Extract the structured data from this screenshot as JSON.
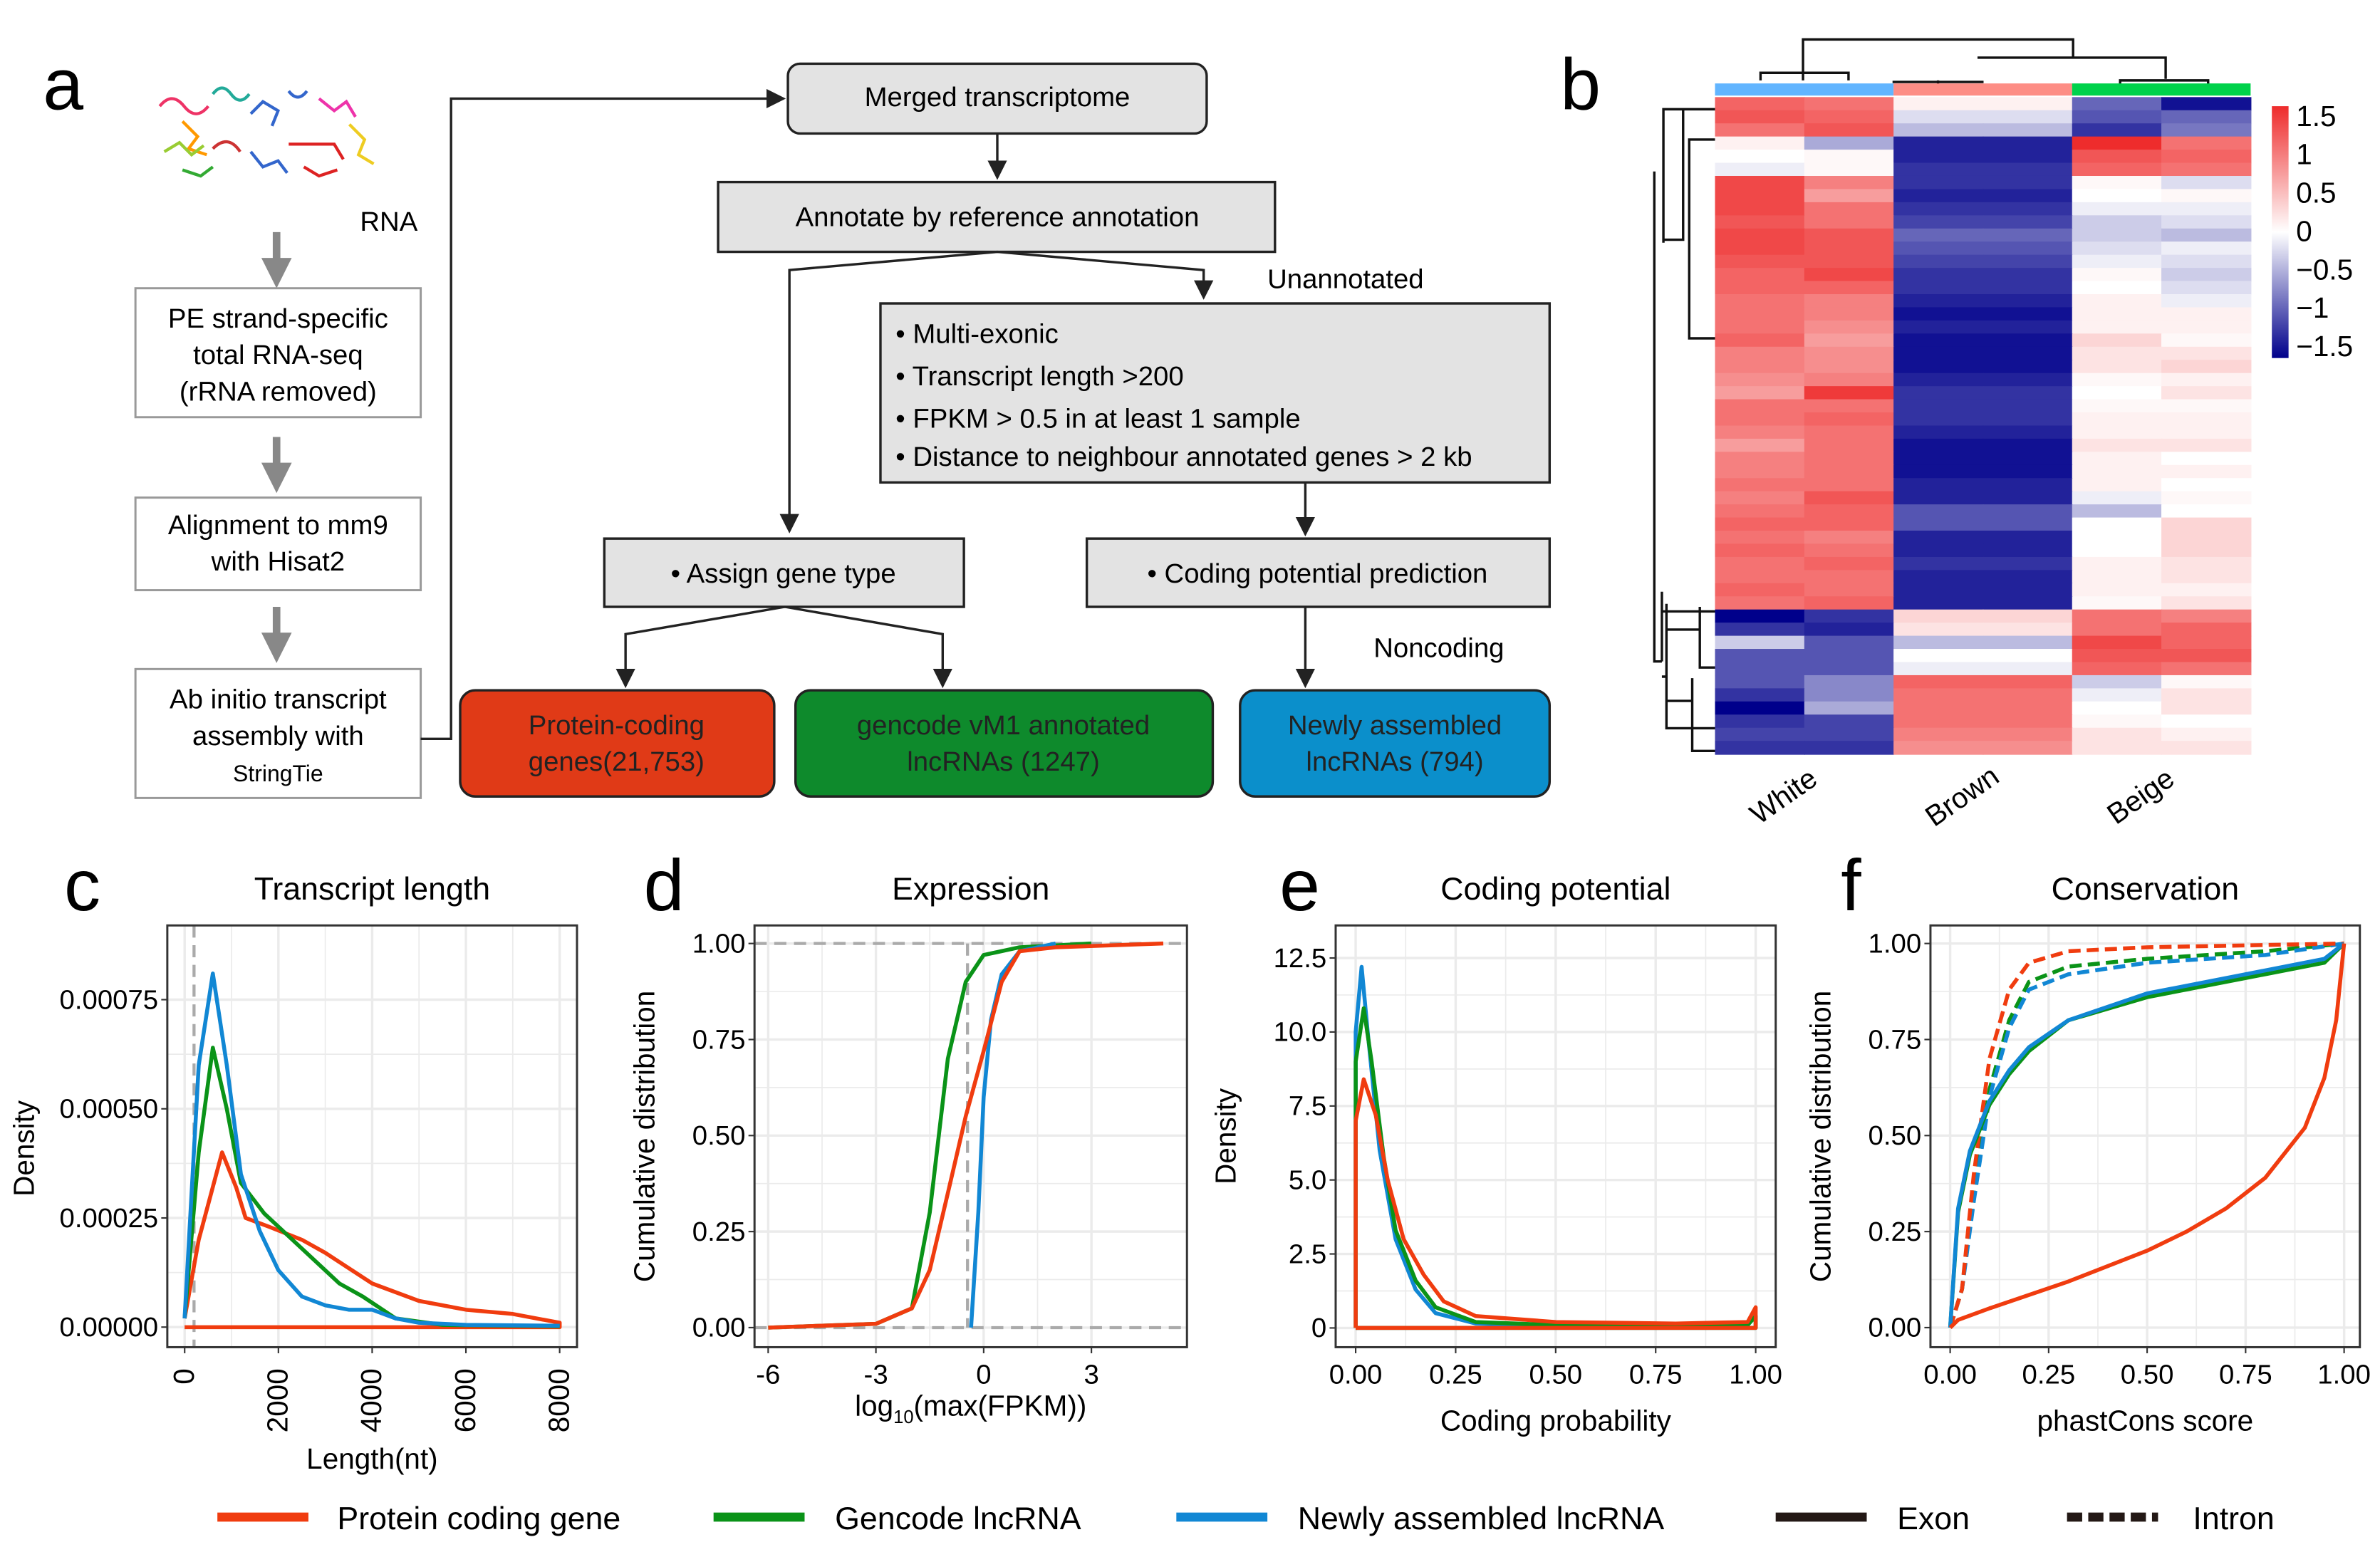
{
  "panel_labels": {
    "a": "a",
    "b": "b",
    "c": "c",
    "d": "d",
    "e": "e",
    "f": "f"
  },
  "flowchart": {
    "rna_label": "RNA",
    "step1": [
      "PE strand-specific",
      "total RNA-seq",
      "(rRNA removed)"
    ],
    "step2": [
      "Alignment to mm9",
      "with   Hisat2"
    ],
    "step3": [
      "Ab initio transcript",
      "assembly with",
      "StringTie"
    ],
    "merged": "Merged transcriptome",
    "annotate": "Annotate by reference annotation",
    "unannotated": "Unannotated",
    "criteria": [
      "• Multi-exonic",
      "• Transcript length >200",
      "• FPKM > 0.5 in at least 1 sample",
      "• Distance to neighbour annotated genes > 2 kb"
    ],
    "assign": "• Assign gene type",
    "coding_pred": "• Coding potential prediction",
    "noncoding": "Noncoding",
    "protein_box": [
      "Protein-coding",
      "genes(21,753)"
    ],
    "gencode_box": [
      "gencode vM1 annotated",
      "lncRNAs (1247)"
    ],
    "newly_box": [
      "Newly assembled",
      "lncRNAs (794)"
    ],
    "colors": {
      "protein": "#e03a17",
      "gencode": "#0e8a2c",
      "newly": "#0b8fcb"
    }
  },
  "legend": [
    {
      "label": "Protein coding gene",
      "color": "#f03c0f",
      "style": "solid"
    },
    {
      "label": "Gencode lncRNA",
      "color": "#0a9318",
      "style": "solid"
    },
    {
      "label": "Newly assembled lncRNA",
      "color": "#1187d4",
      "style": "solid"
    },
    {
      "label": "Exon",
      "color": "#231815",
      "style": "solid"
    },
    {
      "label": "Intron",
      "color": "#231815",
      "style": "dashed"
    }
  ],
  "chart_data": [
    {
      "id": "b",
      "type": "heatmap",
      "columns": [
        "White",
        "White",
        "Brown",
        "Brown",
        "Beige",
        "Beige"
      ],
      "groups": [
        {
          "name": "White",
          "color": "#62b5ff"
        },
        {
          "name": "Brown",
          "color": "#fd8d85"
        },
        {
          "name": "Beige",
          "color": "#00d24b"
        }
      ],
      "colorbar": {
        "ticks": [
          "1.5",
          "1",
          "0.5",
          "0",
          "−0.5",
          "−1",
          "−1.5"
        ],
        "range": [
          -1.5,
          1.5
        ],
        "low": "#00008b",
        "mid": "#ffffff",
        "high": "#ee2c2c"
      },
      "rows": [
        [
          1.1,
          1.0,
          0.1,
          0.1,
          -0.9,
          -1.4
        ],
        [
          1.2,
          1.1,
          -0.2,
          -0.2,
          -1.0,
          -0.9
        ],
        [
          1.0,
          1.2,
          -0.4,
          -0.4,
          -1.2,
          -0.8
        ],
        [
          0.1,
          -0.5,
          -1.3,
          -1.3,
          1.5,
          1.0
        ],
        [
          0.0,
          0.05,
          -1.3,
          -1.3,
          1.2,
          1.1
        ],
        [
          -0.1,
          0.05,
          -1.2,
          -1.2,
          1.1,
          1.0
        ],
        [
          1.3,
          0.9,
          -1.2,
          -1.2,
          0.05,
          -0.2
        ],
        [
          1.3,
          0.7,
          -1.3,
          -1.3,
          0.0,
          0.05
        ],
        [
          1.3,
          1.0,
          -1.2,
          -1.2,
          -0.1,
          -0.1
        ],
        [
          1.2,
          1.0,
          -1.1,
          -1.1,
          -0.3,
          -0.2
        ],
        [
          1.3,
          1.2,
          -0.9,
          -0.9,
          -0.3,
          -0.4
        ],
        [
          1.3,
          1.2,
          -1.0,
          -1.0,
          -0.2,
          -0.1
        ],
        [
          1.2,
          1.2,
          -1.1,
          -1.1,
          -0.1,
          -0.2
        ],
        [
          1.1,
          1.3,
          -1.2,
          -1.2,
          0.05,
          -0.3
        ],
        [
          1.1,
          1.1,
          -1.2,
          -1.2,
          0.0,
          -0.2
        ],
        [
          1.0,
          0.9,
          -1.3,
          -1.3,
          0.1,
          -0.1
        ],
        [
          1.0,
          0.9,
          -1.4,
          -1.4,
          0.1,
          0.1
        ],
        [
          1.0,
          0.8,
          -1.3,
          -1.3,
          0.1,
          0.1
        ],
        [
          1.1,
          0.7,
          -1.4,
          -1.4,
          0.3,
          0.05
        ],
        [
          0.9,
          0.8,
          -1.4,
          -1.4,
          0.2,
          0.2
        ],
        [
          0.9,
          0.8,
          -1.4,
          -1.4,
          0.2,
          0.3
        ],
        [
          0.8,
          0.9,
          -1.3,
          -1.3,
          0.05,
          0.1
        ],
        [
          0.7,
          1.4,
          -1.2,
          -1.2,
          0.0,
          0.2
        ],
        [
          1.0,
          1.0,
          -1.2,
          -1.2,
          0.05,
          0.05
        ],
        [
          1.0,
          1.1,
          -1.2,
          -1.2,
          0.1,
          0.1
        ],
        [
          0.9,
          1.0,
          -1.3,
          -1.3,
          0.1,
          0.1
        ],
        [
          0.7,
          1.0,
          -1.4,
          -1.4,
          0.2,
          0.2
        ],
        [
          0.9,
          1.0,
          -1.4,
          -1.4,
          0.1,
          0.0
        ],
        [
          0.9,
          1.0,
          -1.4,
          -1.4,
          0.1,
          0.1
        ],
        [
          1.0,
          1.0,
          -1.3,
          -1.3,
          0.1,
          0.0
        ],
        [
          0.9,
          1.2,
          -1.3,
          -1.3,
          -0.1,
          0.05
        ],
        [
          1.0,
          1.1,
          -1.0,
          -1.0,
          -0.4,
          0.0
        ],
        [
          1.1,
          1.1,
          -1.0,
          -1.0,
          0.0,
          0.3
        ],
        [
          1.0,
          0.9,
          -1.3,
          -1.3,
          0.0,
          0.3
        ],
        [
          1.1,
          1.0,
          -1.3,
          -1.3,
          0.0,
          0.3
        ],
        [
          1.0,
          1.1,
          -1.2,
          -1.2,
          0.1,
          0.2
        ],
        [
          1.0,
          1.0,
          -1.3,
          -1.3,
          0.1,
          0.2
        ],
        [
          1.1,
          1.0,
          -1.3,
          -1.3,
          0.1,
          0.1
        ],
        [
          1.0,
          1.1,
          -1.3,
          -1.3,
          0.05,
          0.2
        ],
        [
          -1.5,
          -1.2,
          0.3,
          0.3,
          1.0,
          0.9
        ],
        [
          -1.2,
          -1.3,
          0.2,
          0.2,
          1.0,
          1.1
        ],
        [
          -0.3,
          -1.0,
          -0.4,
          -0.4,
          1.3,
          1.1
        ],
        [
          -1.0,
          -1.0,
          0.0,
          0.0,
          1.2,
          1.2
        ],
        [
          -1.0,
          -1.0,
          -0.1,
          -0.1,
          1.1,
          1.0
        ],
        [
          -1.0,
          -0.7,
          1.1,
          1.1,
          -0.3,
          0.05
        ],
        [
          -1.2,
          -0.7,
          1.0,
          1.0,
          -0.1,
          0.2
        ],
        [
          -1.5,
          -0.5,
          1.0,
          1.0,
          0.0,
          0.2
        ],
        [
          -1.2,
          -1.1,
          1.0,
          1.0,
          0.05,
          0.0
        ],
        [
          -1.1,
          -1.1,
          0.9,
          0.9,
          0.2,
          0.1
        ],
        [
          -1.2,
          -1.2,
          0.8,
          0.8,
          0.2,
          0.2
        ]
      ]
    },
    {
      "id": "c",
      "type": "line",
      "title": "Transcript length",
      "xlabel": "Length(nt)",
      "ylabel": "Density",
      "xlim": [
        -370,
        8370
      ],
      "ylim": [
        -4.6e-05,
        0.00092
      ],
      "xticks": [
        0,
        2000,
        4000,
        6000,
        8000
      ],
      "xtick_labels": [
        "0",
        "2000",
        "4000",
        "6000",
        "8000"
      ],
      "yticks": [
        0,
        0.00025,
        0.0005,
        0.00075
      ],
      "ytick_labels": [
        "0.00000",
        "0.00025",
        "0.00050",
        "0.00075"
      ],
      "vline": 200,
      "series": [
        {
          "name": "Protein coding gene",
          "x": [
            0,
            300,
            800,
            1100,
            1300,
            1800,
            2500,
            3000,
            4000,
            5000,
            6000,
            7000,
            8000,
            8000,
            0
          ],
          "y": [
            2e-05,
            0.0002,
            0.0004,
            0.00032,
            0.00025,
            0.00023,
            0.0002,
            0.00017,
            0.0001,
            6e-05,
            4e-05,
            3e-05,
            1e-05,
            0,
            0
          ]
        },
        {
          "name": "Gencode lncRNA",
          "x": [
            0,
            300,
            600,
            900,
            1200,
            1700,
            2500,
            3300,
            3800,
            4500,
            5500,
            8000
          ],
          "y": [
            2e-05,
            0.0004,
            0.00064,
            0.0005,
            0.00033,
            0.00026,
            0.00018,
            0.0001,
            7e-05,
            2e-05,
            5e-06,
            2e-06
          ]
        },
        {
          "name": "Newly assembled lncRNA",
          "x": [
            0,
            300,
            600,
            900,
            1200,
            1600,
            2000,
            2500,
            3000,
            3500,
            4000,
            4500,
            5000,
            6000,
            8000
          ],
          "y": [
            2e-05,
            0.0006,
            0.00081,
            0.0006,
            0.00035,
            0.00022,
            0.00013,
            7e-05,
            5e-05,
            4e-05,
            4e-05,
            2e-05,
            1e-05,
            5e-06,
            3e-06
          ]
        }
      ]
    },
    {
      "id": "d",
      "type": "line",
      "title": "Expression",
      "xlabel": "log10(max(FPKM))",
      "ylabel": "Cumulative distribution",
      "xlim": [
        -6.38,
        5.66
      ],
      "ylim": [
        -0.051,
        1.047
      ],
      "xticks": [
        -6,
        -3,
        0,
        3
      ],
      "xtick_labels": [
        "-6",
        "-3",
        "0",
        "3"
      ],
      "yticks": [
        0,
        0.25,
        0.5,
        0.75,
        1
      ],
      "ytick_labels": [
        "0.00",
        "0.25",
        "0.50",
        "0.75",
        "1.00"
      ],
      "vline": -0.45,
      "hlines": [
        0,
        1
      ],
      "series": [
        {
          "name": "Gencode lncRNA",
          "x": [
            -6,
            -3,
            -2,
            -1.5,
            -1,
            -0.5,
            0,
            1,
            3
          ],
          "y": [
            0,
            0.01,
            0.05,
            0.3,
            0.7,
            0.9,
            0.97,
            0.99,
            1
          ]
        },
        {
          "name": "Newly assembled lncRNA",
          "x": [
            -0.35,
            -0.15,
            0,
            0.2,
            0.5,
            1,
            2
          ],
          "y": [
            0,
            0.3,
            0.6,
            0.8,
            0.92,
            0.98,
            1
          ]
        },
        {
          "name": "Protein coding gene",
          "x": [
            -6,
            -3,
            -2,
            -1.5,
            -1,
            -0.5,
            0,
            0.5,
            1,
            2,
            5
          ],
          "y": [
            0,
            0.01,
            0.05,
            0.15,
            0.35,
            0.55,
            0.72,
            0.9,
            0.98,
            0.99,
            1
          ]
        }
      ]
    },
    {
      "id": "e",
      "type": "line",
      "title": "Coding potential",
      "xlabel": "Coding probability",
      "ylabel": "Density",
      "xlim": [
        -0.05,
        1.05
      ],
      "ylim": [
        -0.65,
        13.6
      ],
      "xticks": [
        0,
        0.25,
        0.5,
        0.75,
        1
      ],
      "xtick_labels": [
        "0.00",
        "0.25",
        "0.50",
        "0.75",
        "1.00"
      ],
      "yticks": [
        0,
        2.5,
        5,
        7.5,
        10,
        12.5
      ],
      "ytick_labels": [
        "0",
        "2.5",
        "5.0",
        "7.5",
        "10.0",
        "12.5"
      ],
      "series": [
        {
          "name": "Newly assembled lncRNA",
          "x": [
            0,
            0,
            0.015,
            0.03,
            0.06,
            0.1,
            0.15,
            0.2,
            0.3,
            0.5,
            0.98,
            1,
            1,
            0
          ],
          "y": [
            0,
            10,
            12.2,
            10,
            6,
            3,
            1.3,
            0.5,
            0.15,
            0.08,
            0.1,
            0.4,
            0,
            0
          ]
        },
        {
          "name": "Gencode lncRNA",
          "x": [
            0,
            0,
            0.02,
            0.04,
            0.07,
            0.1,
            0.15,
            0.2,
            0.3,
            0.5,
            0.98,
            1,
            1,
            0
          ],
          "y": [
            0,
            9,
            10.8,
            9,
            5.8,
            3.3,
            1.6,
            0.7,
            0.2,
            0.1,
            0.1,
            0.4,
            0,
            0
          ]
        },
        {
          "name": "Protein coding gene",
          "x": [
            0,
            0,
            0.02,
            0.05,
            0.08,
            0.12,
            0.17,
            0.22,
            0.3,
            0.5,
            0.8,
            0.98,
            1,
            1,
            0
          ],
          "y": [
            0,
            7,
            8.4,
            7.2,
            5,
            3,
            1.8,
            0.9,
            0.4,
            0.2,
            0.15,
            0.2,
            0.7,
            0,
            0
          ]
        }
      ]
    },
    {
      "id": "f",
      "type": "line",
      "title": "Conservation",
      "xlabel": "phastCons score",
      "ylabel": "Cumulative distribution",
      "xlim": [
        -0.05,
        1.04
      ],
      "ylim": [
        -0.051,
        1.047
      ],
      "xticks": [
        0,
        0.25,
        0.5,
        0.75,
        1
      ],
      "xtick_labels": [
        "0.00",
        "0.25",
        "0.50",
        "0.75",
        "1.00"
      ],
      "yticks": [
        0,
        0.25,
        0.5,
        0.75,
        1
      ],
      "ytick_labels": [
        "0.00",
        "0.25",
        "0.50",
        "0.75",
        "1.00"
      ],
      "series": [
        {
          "name": "Gencode lncRNA intron",
          "dashed": true,
          "x": [
            0,
            0.03,
            0.06,
            0.1,
            0.15,
            0.2,
            0.3,
            0.5,
            0.8,
            1
          ],
          "y": [
            0,
            0.1,
            0.35,
            0.62,
            0.8,
            0.9,
            0.94,
            0.96,
            0.98,
            1
          ]
        },
        {
          "name": "Newly assembled lncRNA intron",
          "dashed": true,
          "x": [
            0,
            0.03,
            0.06,
            0.1,
            0.15,
            0.2,
            0.3,
            0.5,
            0.8,
            1
          ],
          "y": [
            0,
            0.1,
            0.33,
            0.6,
            0.78,
            0.88,
            0.92,
            0.95,
            0.97,
            1
          ]
        },
        {
          "name": "Protein coding gene intron",
          "dashed": true,
          "x": [
            0,
            0.03,
            0.06,
            0.1,
            0.15,
            0.2,
            0.3,
            0.5,
            1
          ],
          "y": [
            0,
            0.1,
            0.4,
            0.7,
            0.88,
            0.95,
            0.98,
            0.99,
            1
          ]
        },
        {
          "name": "Gencode lncRNA exon",
          "x": [
            0,
            0.02,
            0.05,
            0.1,
            0.15,
            0.2,
            0.3,
            0.5,
            0.75,
            0.95,
            1
          ],
          "y": [
            0,
            0.3,
            0.45,
            0.58,
            0.66,
            0.72,
            0.8,
            0.86,
            0.91,
            0.95,
            1
          ]
        },
        {
          "name": "Newly assembled lncRNA exon",
          "x": [
            0,
            0.02,
            0.05,
            0.1,
            0.15,
            0.2,
            0.3,
            0.5,
            0.75,
            0.95,
            1
          ],
          "y": [
            0,
            0.31,
            0.46,
            0.59,
            0.67,
            0.73,
            0.8,
            0.87,
            0.92,
            0.96,
            1
          ]
        },
        {
          "name": "Protein coding gene exon",
          "x": [
            0,
            0.02,
            0.1,
            0.3,
            0.5,
            0.6,
            0.7,
            0.8,
            0.9,
            0.95,
            0.98,
            1
          ],
          "y": [
            0,
            0.02,
            0.05,
            0.12,
            0.2,
            0.25,
            0.31,
            0.39,
            0.52,
            0.65,
            0.8,
            1
          ]
        }
      ]
    }
  ]
}
